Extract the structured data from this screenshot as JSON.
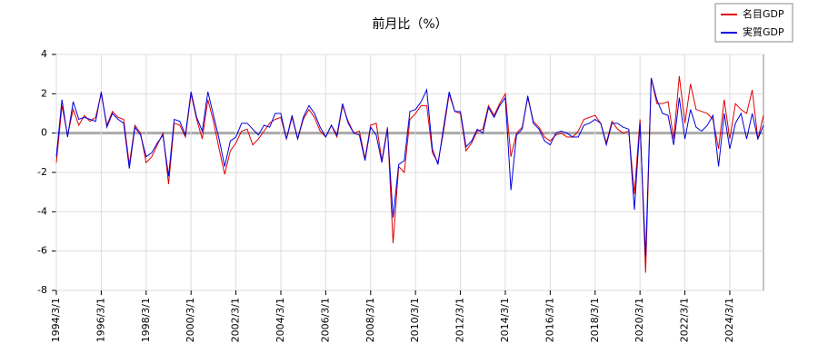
{
  "chart_data": {
    "type": "line",
    "title": "前月比（%）",
    "x": [
      "1994/3/1",
      null,
      null,
      null,
      null,
      null,
      null,
      null,
      "1996/3/1",
      null,
      null,
      null,
      null,
      null,
      null,
      null,
      "1998/3/1",
      null,
      null,
      null,
      null,
      null,
      null,
      null,
      "2000/3/1",
      null,
      null,
      null,
      null,
      null,
      null,
      null,
      "2002/3/1",
      null,
      null,
      null,
      null,
      null,
      null,
      null,
      "2004/3/1",
      null,
      null,
      null,
      null,
      null,
      null,
      null,
      "2006/3/1",
      null,
      null,
      null,
      null,
      null,
      null,
      null,
      "2008/3/1",
      null,
      null,
      null,
      null,
      null,
      null,
      null,
      "2010/3/1",
      null,
      null,
      null,
      null,
      null,
      null,
      null,
      "2012/3/1",
      null,
      null,
      null,
      null,
      null,
      null,
      null,
      "2014/3/1",
      null,
      null,
      null,
      null,
      null,
      null,
      null,
      "2016/3/1",
      null,
      null,
      null,
      null,
      null,
      null,
      null,
      "2018/3/1",
      null,
      null,
      null,
      null,
      null,
      null,
      null,
      "2020/3/1",
      null,
      null,
      null,
      null,
      null,
      null,
      null,
      "2022/3/1",
      null,
      null,
      null,
      null,
      null,
      null,
      null,
      "2024/3/1",
      null,
      null,
      null,
      null,
      null,
      null
    ],
    "series": [
      {
        "name": "名目GDP",
        "color": "#e00000",
        "values": [
          -1.5,
          1.4,
          -0.1,
          1.2,
          0.4,
          0.9,
          0.6,
          0.8,
          2.0,
          0.4,
          1.1,
          0.8,
          0.7,
          -1.6,
          0.4,
          0.0,
          -1.5,
          -1.2,
          -0.6,
          0.0,
          -2.6,
          0.5,
          0.4,
          -0.2,
          2.0,
          0.7,
          -0.3,
          1.7,
          0.6,
          -0.8,
          -2.1,
          -0.9,
          -0.5,
          0.1,
          0.2,
          -0.6,
          -0.3,
          0.1,
          0.5,
          0.7,
          0.8,
          -0.3,
          0.8,
          -0.3,
          0.7,
          1.2,
          0.8,
          0.1,
          -0.2,
          0.4,
          -0.2,
          1.4,
          0.6,
          0.0,
          0.1,
          -1.3,
          0.4,
          0.5,
          -1.4,
          0.3,
          -5.6,
          -1.7,
          -2.0,
          0.7,
          1.0,
          1.4,
          1.4,
          -1.0,
          -1.5,
          0.1,
          2.0,
          1.1,
          1.0,
          -0.9,
          -0.5,
          0.1,
          0.2,
          1.4,
          0.9,
          1.5,
          2.0,
          -1.2,
          0.0,
          0.3,
          1.8,
          0.6,
          0.3,
          -0.2,
          -0.4,
          -0.1,
          0.0,
          -0.2,
          -0.2,
          0.1,
          0.7,
          0.8,
          0.9,
          0.5,
          -0.5,
          0.6,
          0.2,
          0.0,
          0.1,
          -3.1,
          0.7,
          -7.1,
          2.8,
          1.5,
          1.5,
          1.6,
          -0.3,
          2.9,
          0.5,
          2.5,
          1.2,
          1.1,
          1.0,
          0.7,
          -0.8,
          1.7,
          -0.3,
          1.5,
          1.2,
          1.0,
          2.2,
          -0.3,
          0.9
        ]
      },
      {
        "name": "実質GDP",
        "color": "#0000e0",
        "values": [
          -1.2,
          1.7,
          -0.2,
          1.6,
          0.7,
          0.8,
          0.7,
          0.6,
          2.1,
          0.3,
          1.0,
          0.7,
          0.5,
          -1.8,
          0.3,
          -0.1,
          -1.2,
          -1.0,
          -0.5,
          -0.1,
          -2.2,
          0.7,
          0.6,
          -0.1,
          2.1,
          0.8,
          0.1,
          2.1,
          0.9,
          -0.3,
          -1.7,
          -0.4,
          -0.2,
          0.5,
          0.5,
          0.2,
          -0.1,
          0.4,
          0.3,
          1.0,
          1.0,
          -0.3,
          0.9,
          -0.3,
          0.8,
          1.4,
          1.0,
          0.3,
          -0.2,
          0.4,
          -0.1,
          1.5,
          0.5,
          0.0,
          -0.1,
          -1.4,
          0.3,
          -0.1,
          -1.5,
          0.2,
          -4.3,
          -1.6,
          -1.4,
          1.1,
          1.2,
          1.6,
          2.2,
          -0.8,
          -1.6,
          0.3,
          2.1,
          1.1,
          1.1,
          -0.7,
          -0.4,
          0.2,
          0.0,
          1.3,
          0.8,
          1.4,
          1.8,
          -2.9,
          -0.1,
          0.2,
          1.9,
          0.5,
          0.2,
          -0.4,
          -0.6,
          0.0,
          0.1,
          0.0,
          -0.2,
          -0.2,
          0.4,
          0.5,
          0.7,
          0.5,
          -0.6,
          0.5,
          0.5,
          0.3,
          0.2,
          -3.9,
          0.5,
          -6.3,
          2.8,
          1.7,
          1.0,
          0.9,
          -0.6,
          1.8,
          -0.3,
          1.2,
          0.3,
          0.1,
          0.4,
          0.9,
          -1.7,
          1.0,
          -0.8,
          0.5,
          1.0,
          -0.3,
          1.0,
          -0.3,
          0.4
        ]
      }
    ],
    "ylim": [
      -8,
      4
    ],
    "yticks": [
      -8,
      -6,
      -4,
      -2,
      0,
      2,
      4
    ],
    "grid": true,
    "legend": "upper-right"
  }
}
